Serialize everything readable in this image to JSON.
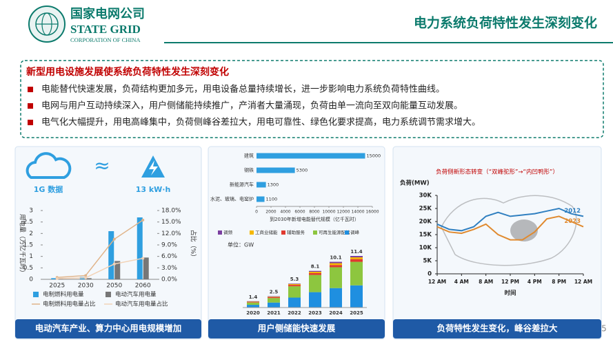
{
  "header": {
    "logo_cn": "国家电网公司",
    "logo_en": "STATE GRID",
    "logo_sub": "CORPORATION OF CHINA",
    "title": "电力系统负荷特性发生深刻变化"
  },
  "box": {
    "heading": "新型用电设施发展使系统负荷特性发生深刻变化",
    "bullets": [
      "电能替代快速发展，负荷结构更加多元，用电设备总量持续增长，进一步影响电力系统负荷特性曲线。",
      "电网与用户互动持续深入，用户侧储能持续推广，产消者大量涌现，负荷由单一流向至双向能量互动发展。",
      "电气化大幅提升，用电高峰集中，负荷侧峰谷差拉大，用电可靠性、绿色化要求提高，电力系统调节需求增大。"
    ]
  },
  "panels": [
    {
      "caption": "电动汽车产业、算力中心用电规模增加",
      "icons": {
        "left": "1G 数据",
        "mid": "≈",
        "right": "13 kW·h"
      },
      "chart_data": {
        "type": "bar",
        "categories": [
          "2025",
          "2030",
          "2050",
          "2060"
        ],
        "y_label": "用电量（万亿千瓦时）",
        "y2_label": "占比（%）",
        "ylim": [
          0,
          3
        ],
        "yticks": [
          0,
          0.5,
          1,
          1.5,
          2,
          2.5,
          3
        ],
        "y2lim": [
          0,
          18
        ],
        "y2ticks": [
          {
            "value": 0,
            "label": "0.0%"
          },
          {
            "value": 3,
            "label": "3.0%"
          },
          {
            "value": 6,
            "label": "6.0%"
          },
          {
            "value": 9,
            "label": "9.0%"
          },
          {
            "value": 12,
            "label": "12.0%"
          },
          {
            "value": 15,
            "label": "15.0%"
          },
          {
            "value": 18,
            "label": "18.0%"
          }
        ],
        "series": [
          {
            "name": "电制燃料用电量",
            "color": "#2f9fe0",
            "kind": "bar",
            "values": [
              0.05,
              0.1,
              2.1,
              2.7
            ]
          },
          {
            "name": "电动汽车用电量",
            "color": "#777777",
            "kind": "bar",
            "values": [
              0.02,
              0.05,
              0.8,
              0.95
            ]
          },
          {
            "name": "电制燃料用电量占比",
            "color": "#e0b48a",
            "kind": "line",
            "axis": "y2",
            "values": [
              0.5,
              1.0,
              10.5,
              15.5
            ]
          },
          {
            "name": "电动汽车用电量占比",
            "color": "#f2d2b6",
            "kind": "line",
            "axis": "y2",
            "values": [
              0.2,
              0.4,
              4.0,
              5.5
            ]
          }
        ]
      }
    },
    {
      "caption": "用户侧储能快速发展",
      "charts": [
        {
          "type": "hbar",
          "color": "#2f9fe0",
          "categories": [
            "建筑",
            "钢铁",
            "新能源汽车",
            "水泥、玻璃、电窑炉"
          ],
          "values": [
            15000,
            5300,
            1300,
            1100
          ],
          "xlim": [
            0,
            16000
          ],
          "xticks": [
            0,
            2000,
            4000,
            6000,
            8000,
            10000,
            12000,
            14000,
            16000
          ],
          "x_label": "到2030年新增电能替代规模（亿千瓦时）"
        },
        {
          "type": "stacked_bar",
          "unit": "单位：GW",
          "categories": [
            "2020",
            "2021",
            "2022",
            "2023",
            "2024",
            "2025"
          ],
          "series": [
            {
              "name": "调峰",
              "color": "#1f8fe0",
              "values": [
                0.6,
                1.1,
                2.2,
                3.4,
                4.3,
                4.9
              ]
            },
            {
              "name": "可再生能源配储",
              "color": "#8dc63f",
              "values": [
                0.5,
                1.0,
                2.5,
                3.8,
                4.6,
                5.2
              ]
            },
            {
              "name": "辅助服务",
              "color": "#e03a2f",
              "values": [
                0.1,
                0.2,
                0.3,
                0.4,
                0.5,
                0.6
              ]
            },
            {
              "name": "工商业储能",
              "color": "#f5b800",
              "values": [
                0.1,
                0.1,
                0.2,
                0.3,
                0.4,
                0.4
              ]
            },
            {
              "name": "调频",
              "color": "#7b3fa0",
              "values": [
                0.1,
                0.1,
                0.1,
                0.2,
                0.3,
                0.3
              ]
            }
          ],
          "totals": [
            1.4,
            2.5,
            5.3,
            8.1,
            10.1,
            11.4
          ]
        }
      ]
    },
    {
      "caption": "负荷特性发生变化，峰谷差拉大",
      "chart_data": {
        "type": "line",
        "title": "负荷侧新形态转变（“双峰驼形”→“内凹鸭形”）",
        "y_label": "负荷(MW)",
        "x_label": "时间",
        "x": [
          0,
          2,
          4,
          6,
          8,
          10,
          12,
          14,
          16,
          18,
          20,
          22,
          24
        ],
        "xlim": [
          0,
          24
        ],
        "xticks": [
          {
            "value": 0,
            "label": "12 AM"
          },
          {
            "value": 4,
            "label": "4 AM"
          },
          {
            "value": 8,
            "label": "8 AM"
          },
          {
            "value": 12,
            "label": "12 PM"
          },
          {
            "value": 16,
            "label": "4 PM"
          },
          {
            "value": 20,
            "label": "8 PM"
          },
          {
            "value": 24,
            "label": "12 AM"
          }
        ],
        "ylim": [
          0,
          30000
        ],
        "yticks": [
          0,
          {
            "value": 5000,
            "label": "5K"
          },
          {
            "value": 10000,
            "label": "10K"
          },
          {
            "value": 15000,
            "label": "15K"
          },
          {
            "value": 20000,
            "label": "20K"
          },
          {
            "value": 25000,
            "label": "25K"
          },
          {
            "value": 30000,
            "label": "30K"
          }
        ],
        "series": [
          {
            "name": "2012",
            "color": "#2f7fc0",
            "values": [
              19000,
              17000,
              16500,
              18000,
              22000,
              23500,
              22000,
              22500,
              23000,
              24000,
              25000,
              23000,
              22000
            ]
          },
          {
            "name": "2023",
            "color": "#e08a2f",
            "values": [
              18000,
              16000,
              15500,
              17000,
              19000,
              15000,
              13000,
              13000,
              16000,
              21000,
              22000,
              20000,
              18000
            ]
          }
        ]
      }
    }
  ],
  "page_number": "5"
}
